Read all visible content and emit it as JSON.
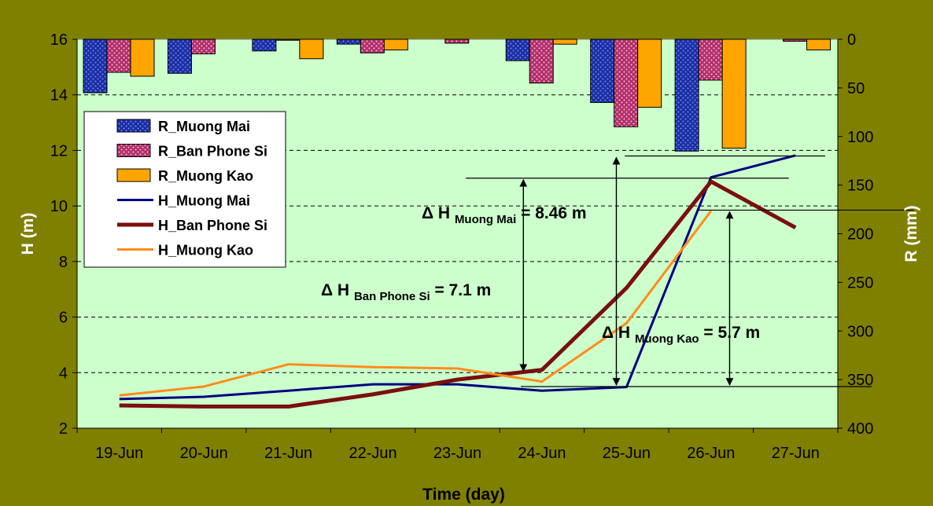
{
  "chart_data": {
    "type": "bar+line",
    "categories": [
      "19-Jun",
      "20-Jun",
      "21-Jun",
      "22-Jun",
      "23-Jun",
      "24-Jun",
      "25-Jun",
      "26-Jun",
      "27-Jun"
    ],
    "xlabel": "Time (day)",
    "ylabel_left": "H (m)",
    "ylabel_right": "R (mm)",
    "ylim_left": [
      2,
      16
    ],
    "yticks_left": [
      2,
      4,
      6,
      8,
      10,
      12,
      14,
      16
    ],
    "ylim_right": [
      0,
      400
    ],
    "yticks_right": [
      0,
      50,
      100,
      150,
      200,
      250,
      300,
      350,
      400
    ],
    "right_axis_inverted": true,
    "grid": "horizontal dashed",
    "legend_placement": "left",
    "bar_series": [
      {
        "name": "R_Muong Mai",
        "color": "#1c2fa0",
        "pattern": "dots-blue",
        "values": [
          55,
          35,
          12,
          5,
          0,
          22,
          65,
          115,
          0
        ]
      },
      {
        "name": "R_Ban Phone Si",
        "color": "#b0306a",
        "pattern": "dots-pink",
        "values": [
          34,
          15,
          1,
          14,
          4,
          45,
          90,
          42,
          2
        ]
      },
      {
        "name": "R_Muong Kao",
        "color": "#ffa500",
        "pattern": "solid",
        "values": [
          38,
          0,
          20,
          11,
          0,
          5,
          70,
          112,
          11
        ]
      }
    ],
    "line_series": [
      {
        "name": "H_Muong Mai",
        "color": "#000080",
        "width": 3,
        "values": [
          3.05,
          3.13,
          3.35,
          3.58,
          3.58,
          3.35,
          3.48,
          11.03,
          11.82
        ]
      },
      {
        "name": "H_Ban Phone Si",
        "color": "#7a0f0f",
        "width": 5,
        "values": [
          2.82,
          2.78,
          2.78,
          3.22,
          3.75,
          4.1,
          7.05,
          10.88,
          9.22
        ]
      },
      {
        "name": "H_Muong Kao",
        "color": "#ff8c1a",
        "width": 3,
        "values": [
          3.18,
          3.5,
          4.3,
          4.2,
          4.15,
          3.68,
          5.78,
          9.82,
          null
        ]
      }
    ],
    "annotations": [
      {
        "prefix": "Δ H",
        "sub": "Muong Mai",
        "suffix": "= 8.46 m"
      },
      {
        "prefix": "Δ H",
        "sub": "Ban Phone Si",
        "suffix": "= 7.1 m"
      },
      {
        "prefix": "Δ H",
        "sub": "Muong Kao",
        "suffix": "= 5.7 m"
      }
    ]
  }
}
